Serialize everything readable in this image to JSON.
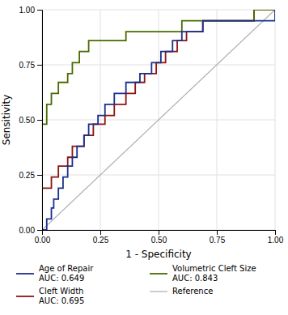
{
  "chart_data": {
    "type": "line",
    "xlabel": "1 - Specificity",
    "ylabel": "Sensitivity",
    "xlim": [
      0.0,
      1.0
    ],
    "ylim": [
      0.0,
      1.0
    ],
    "xticks": [
      {
        "value": 0.0,
        "label": "0.00"
      },
      {
        "value": 0.25,
        "label": "0.25"
      },
      {
        "value": 0.5,
        "label": "0.50"
      },
      {
        "value": 0.75,
        "label": "0.75"
      },
      {
        "value": 1.0,
        "label": "1.00"
      }
    ],
    "yticks": [
      {
        "value": 0.0,
        "label": "0.00"
      },
      {
        "value": 0.25,
        "label": "0.25"
      },
      {
        "value": 0.5,
        "label": "0.50"
      },
      {
        "value": 0.75,
        "label": "0.75"
      },
      {
        "value": 1.0,
        "label": "1.00"
      }
    ],
    "grid": true,
    "legend": "bottom",
    "series": [
      {
        "name": "Age of Repair\nAUC: 0.649",
        "type": "step",
        "color": "#1a2f8c",
        "x": [
          0.0,
          0.02,
          0.04,
          0.05,
          0.06,
          0.07,
          0.09,
          0.11,
          0.13,
          0.15,
          0.16,
          0.18,
          0.2,
          0.22,
          0.24,
          0.27,
          0.29,
          0.31,
          0.33,
          0.36,
          0.38,
          0.42,
          0.44,
          0.47,
          0.49,
          0.51,
          0.53,
          0.56,
          0.58,
          0.6,
          0.62,
          0.64,
          0.67,
          0.69,
          0.76,
          0.8,
          0.87,
          0.91,
          1.0
        ],
        "values": [
          0.0,
          0.05,
          0.1,
          0.14,
          0.14,
          0.19,
          0.24,
          0.29,
          0.33,
          0.38,
          0.38,
          0.43,
          0.48,
          0.48,
          0.52,
          0.57,
          0.57,
          0.62,
          0.62,
          0.67,
          0.67,
          0.71,
          0.71,
          0.76,
          0.76,
          0.81,
          0.81,
          0.86,
          0.86,
          0.9,
          0.9,
          0.9,
          0.9,
          0.95,
          0.95,
          0.95,
          0.95,
          0.95,
          1.0
        ]
      },
      {
        "name": "Volumetric Cleft Size\nAUC: 0.843",
        "type": "step",
        "color": "#4a6a00",
        "x": [
          0.0,
          0.02,
          0.04,
          0.07,
          0.09,
          0.11,
          0.13,
          0.16,
          0.18,
          0.2,
          0.22,
          0.24,
          0.27,
          0.29,
          0.33,
          0.36,
          0.38,
          0.42,
          0.47,
          0.51,
          0.56,
          0.6,
          0.64,
          0.76,
          0.8,
          0.87,
          0.91,
          1.0
        ],
        "values": [
          0.48,
          0.57,
          0.62,
          0.67,
          0.67,
          0.71,
          0.76,
          0.81,
          0.81,
          0.86,
          0.86,
          0.86,
          0.86,
          0.86,
          0.86,
          0.9,
          0.9,
          0.9,
          0.9,
          0.9,
          0.9,
          0.95,
          0.95,
          0.95,
          0.95,
          0.95,
          1.0,
          1.0
        ]
      },
      {
        "name": "Cleft Width\nAUC: 0.695",
        "type": "step",
        "color": "#8b1515",
        "x": [
          0.0,
          0.02,
          0.04,
          0.07,
          0.09,
          0.11,
          0.13,
          0.16,
          0.18,
          0.2,
          0.22,
          0.24,
          0.27,
          0.29,
          0.31,
          0.33,
          0.36,
          0.38,
          0.4,
          0.42,
          0.44,
          0.47,
          0.49,
          0.51,
          0.53,
          0.56,
          0.58,
          0.6,
          0.62,
          0.64,
          0.69,
          0.76,
          0.8,
          0.87,
          0.91,
          1.0
        ],
        "values": [
          0.19,
          0.19,
          0.24,
          0.29,
          0.29,
          0.33,
          0.38,
          0.38,
          0.43,
          0.43,
          0.48,
          0.48,
          0.52,
          0.52,
          0.57,
          0.57,
          0.62,
          0.62,
          0.67,
          0.67,
          0.71,
          0.71,
          0.76,
          0.76,
          0.81,
          0.81,
          0.86,
          0.86,
          0.9,
          0.9,
          0.95,
          0.95,
          0.95,
          0.95,
          1.0,
          1.0
        ]
      },
      {
        "name": "Reference",
        "type": "line",
        "color": "#aaaaaa",
        "x": [
          0,
          1
        ],
        "values": [
          0,
          1
        ]
      }
    ]
  }
}
